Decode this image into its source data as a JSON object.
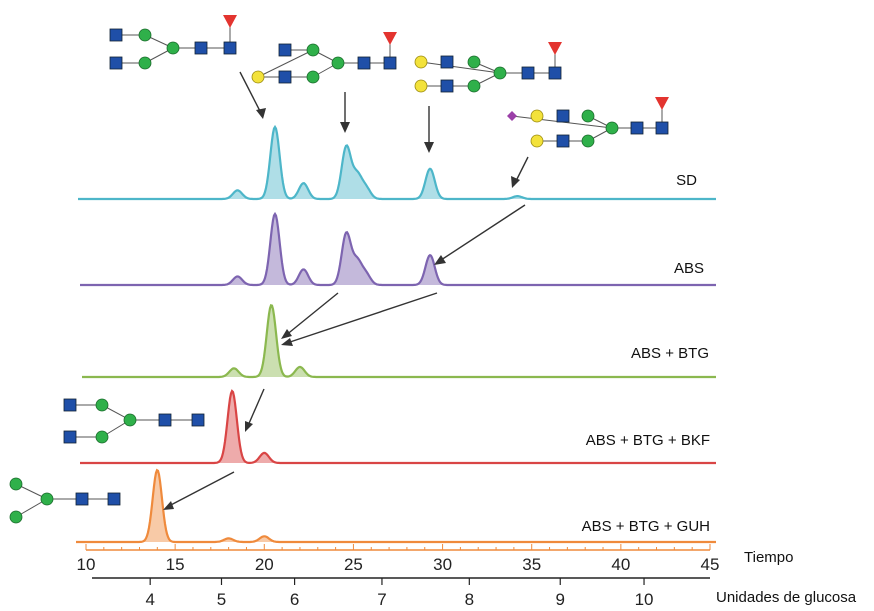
{
  "chart_data": {
    "type": "line",
    "x_axis": {
      "label": "Tiempo",
      "range": [
        10,
        45
      ],
      "ticks": [
        10,
        15,
        20,
        25,
        30,
        35,
        40,
        45
      ]
    },
    "x2_axis": {
      "label": "Unidades de glucosa",
      "ticks": [
        {
          "label": "4",
          "time": 13.6
        },
        {
          "label": "5",
          "time": 17.6
        },
        {
          "label": "6",
          "time": 21.7
        },
        {
          "label": "7",
          "time": 26.6
        },
        {
          "label": "8",
          "time": 31.5
        },
        {
          "label": "9",
          "time": 36.6
        },
        {
          "label": "10",
          "time": 41.3
        }
      ]
    },
    "series": [
      {
        "name": "SD",
        "color": "#4db6c9",
        "peaks": [
          [
            18.5,
            0.12
          ],
          [
            20.6,
            1.0
          ],
          [
            22.2,
            0.22
          ],
          [
            24.6,
            0.72
          ],
          [
            25.2,
            0.32
          ],
          [
            25.7,
            0.15
          ],
          [
            29.3,
            0.42
          ],
          [
            34.2,
            0.04
          ]
        ]
      },
      {
        "name": "ABS",
        "color": "#7d64b0",
        "peaks": [
          [
            18.5,
            0.12
          ],
          [
            20.6,
            1.0
          ],
          [
            22.2,
            0.22
          ],
          [
            24.6,
            0.72
          ],
          [
            25.2,
            0.32
          ],
          [
            25.7,
            0.15
          ],
          [
            29.3,
            0.42
          ]
        ]
      },
      {
        "name": "ABS + BTG",
        "color": "#8bb84f",
        "peaks": [
          [
            18.3,
            0.12
          ],
          [
            20.4,
            1.0
          ],
          [
            22.0,
            0.14
          ]
        ]
      },
      {
        "name": "ABS + BTG + BKF",
        "color": "#d94545",
        "peaks": [
          [
            18.2,
            1.0
          ],
          [
            20.0,
            0.14
          ]
        ]
      },
      {
        "name": "ABS + BTG + GUH",
        "color": "#ef8a3c",
        "peaks": [
          [
            14.0,
            1.0
          ],
          [
            18.0,
            0.05
          ],
          [
            20.0,
            0.08
          ]
        ]
      }
    ]
  }
}
